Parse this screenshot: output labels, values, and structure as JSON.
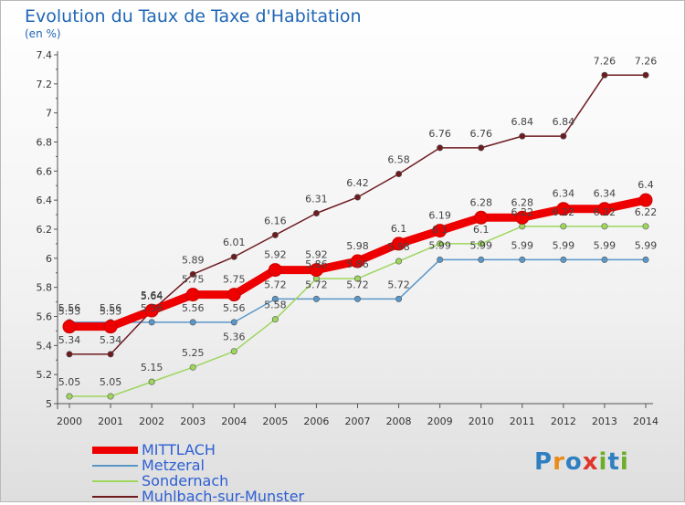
{
  "title": "Evolution du Taux de Taxe d'Habitation",
  "subtitle": "(en %)",
  "logo": [
    "P",
    "r",
    "o",
    "x",
    "i",
    "t",
    "i"
  ],
  "chart_data": {
    "type": "line",
    "x": [
      "2000",
      "2001",
      "2002",
      "2003",
      "2004",
      "2005",
      "2006",
      "2007",
      "2008",
      "2009",
      "2010",
      "2011",
      "2012",
      "2013",
      "2014"
    ],
    "ylim": [
      5,
      7.4
    ],
    "yticks": [
      "5",
      "5.2",
      "5.4",
      "5.6",
      "5.8",
      "6",
      "6.2",
      "6.4",
      "6.6",
      "6.8",
      "7",
      "7.2",
      "7.4"
    ],
    "grid": false,
    "legend_position": "bottom-left",
    "series": [
      {
        "name": "MITTLACH",
        "color": "#ee0000",
        "values": [
          5.53,
          5.53,
          5.64,
          5.75,
          5.75,
          5.92,
          5.92,
          5.98,
          6.1,
          6.19,
          6.28,
          6.28,
          6.34,
          6.34,
          6.4
        ]
      },
      {
        "name": "Metzeral",
        "color": "#5a97c9",
        "values": [
          5.56,
          5.56,
          5.56,
          5.56,
          5.56,
          5.72,
          5.72,
          5.72,
          5.72,
          5.99,
          5.99,
          5.99,
          5.99,
          5.99,
          5.99
        ]
      },
      {
        "name": "Sondernach",
        "color": "#9ed65e",
        "values": [
          5.05,
          5.05,
          5.15,
          5.25,
          5.36,
          5.58,
          5.86,
          5.86,
          5.98,
          6.1,
          6.1,
          6.22,
          6.22,
          6.22,
          6.22
        ]
      },
      {
        "name": "Muhlbach-sur-Munster",
        "color": "#6e1b20",
        "values": [
          5.34,
          5.34,
          5.64,
          5.89,
          6.01,
          6.16,
          6.31,
          6.42,
          6.58,
          6.76,
          6.76,
          6.84,
          6.84,
          7.26,
          7.26
        ]
      }
    ]
  }
}
